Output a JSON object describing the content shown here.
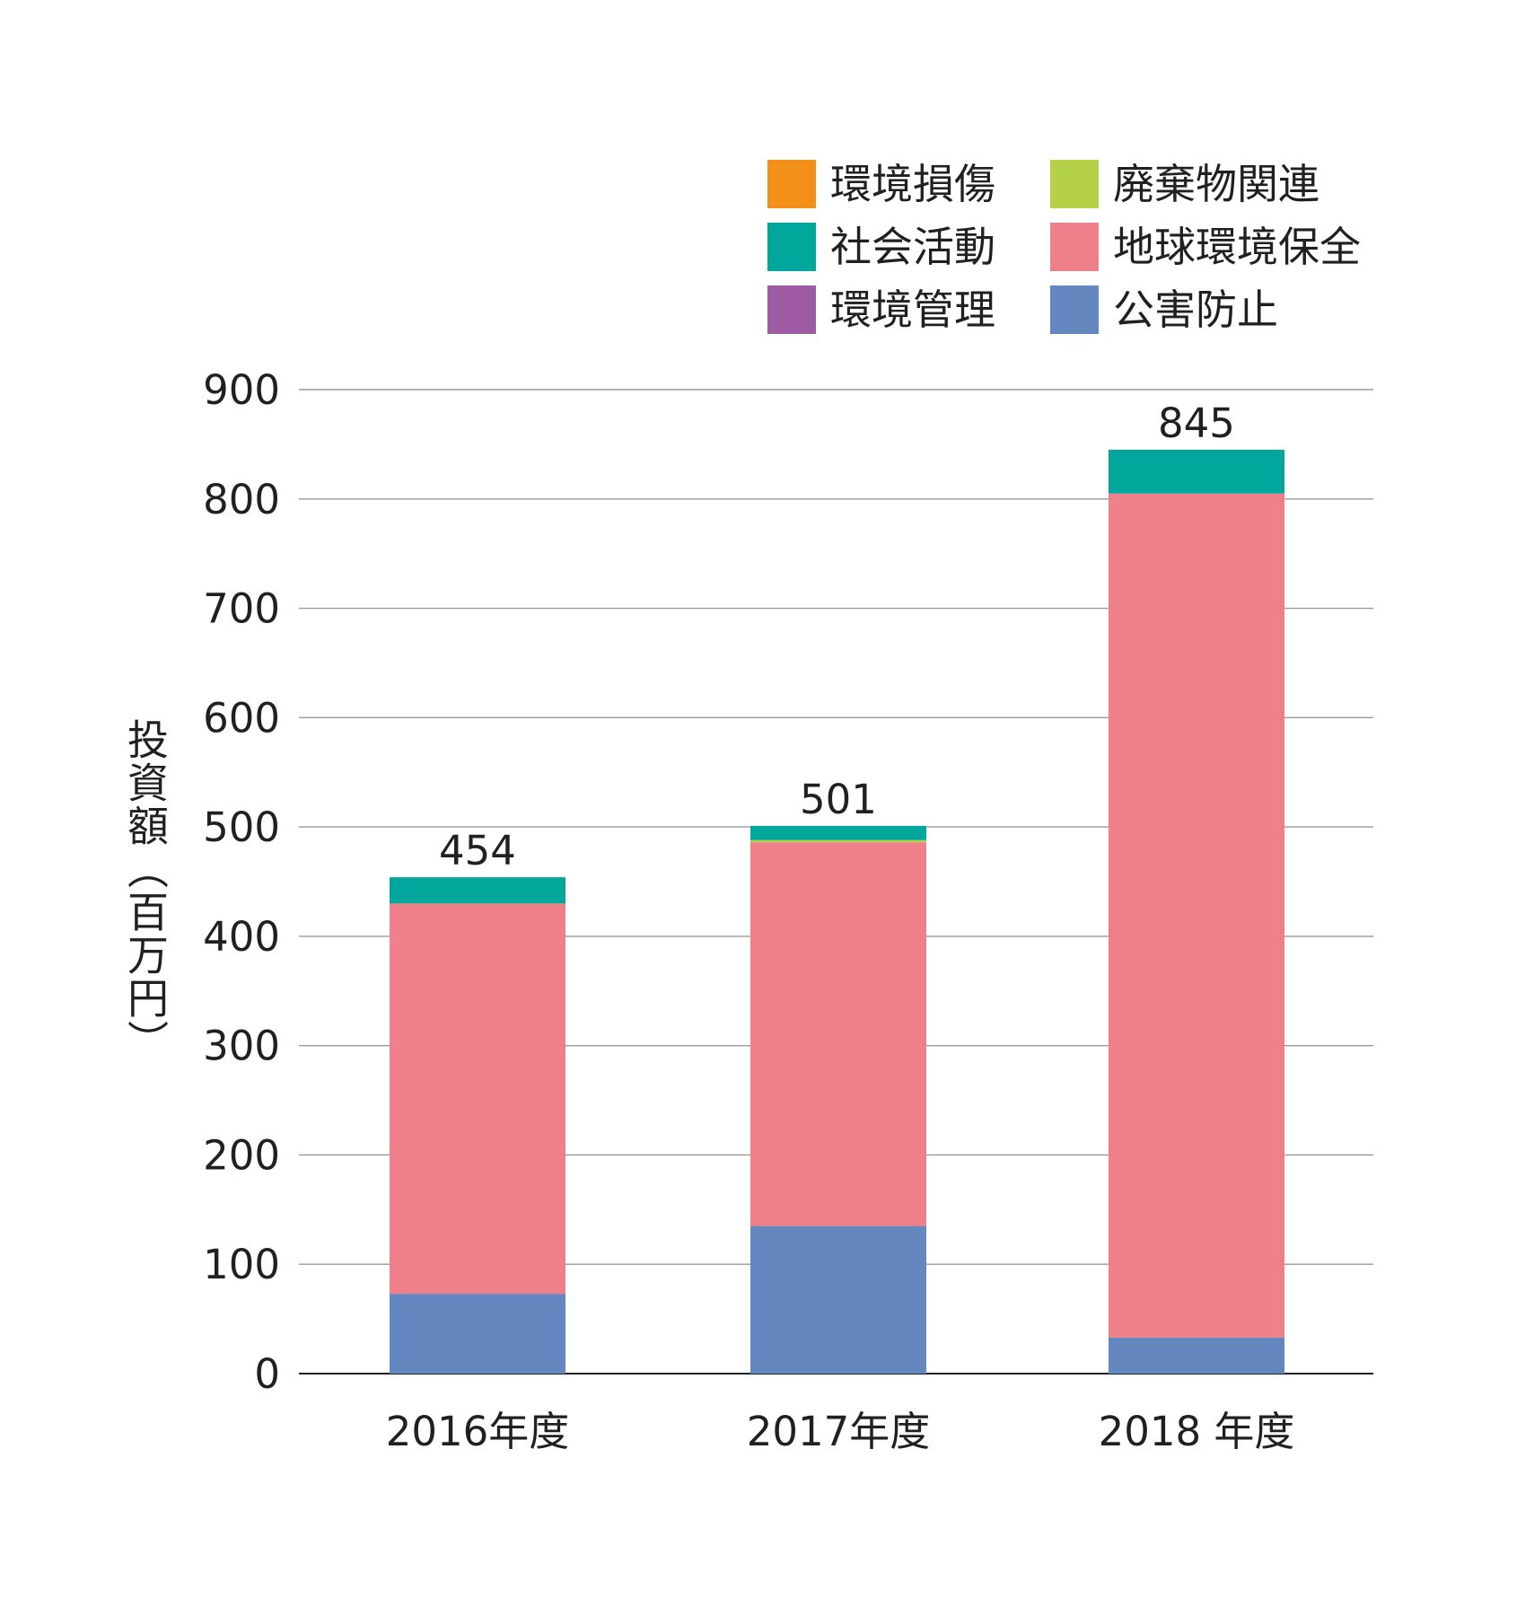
{
  "chart_data": {
    "type": "bar",
    "stacked": true,
    "categories": [
      "2016年度",
      "2017年度",
      "2018 年度"
    ],
    "ylabel": "投資額（百万円）",
    "ylim": [
      0,
      900
    ],
    "yticks": [
      0,
      100,
      200,
      300,
      400,
      500,
      600,
      700,
      800,
      900
    ],
    "grid": true,
    "legend_position": "top-right",
    "totals": [
      454,
      501,
      845
    ],
    "series": [
      {
        "name": "公害防止",
        "color": "#6487c0",
        "values": [
          73,
          135,
          33
        ]
      },
      {
        "name": "地球環境保全",
        "color": "#ee808a",
        "values": [
          357,
          351,
          772
        ]
      },
      {
        "name": "環境管理",
        "color": "#9e5ba3",
        "values": [
          0,
          0,
          0
        ]
      },
      {
        "name": "廃棄物関連",
        "color": "#b5d147",
        "values": [
          0,
          2,
          0
        ]
      },
      {
        "name": "社会活動",
        "color": "#00a79a",
        "values": [
          24,
          13,
          40
        ]
      },
      {
        "name": "環境損傷",
        "color": "#f39019",
        "values": [
          0,
          0,
          0
        ]
      }
    ],
    "legend_order": [
      "環境損傷",
      "廃棄物関連",
      "社会活動",
      "地球環境保全",
      "環境管理",
      "公害防止"
    ]
  }
}
